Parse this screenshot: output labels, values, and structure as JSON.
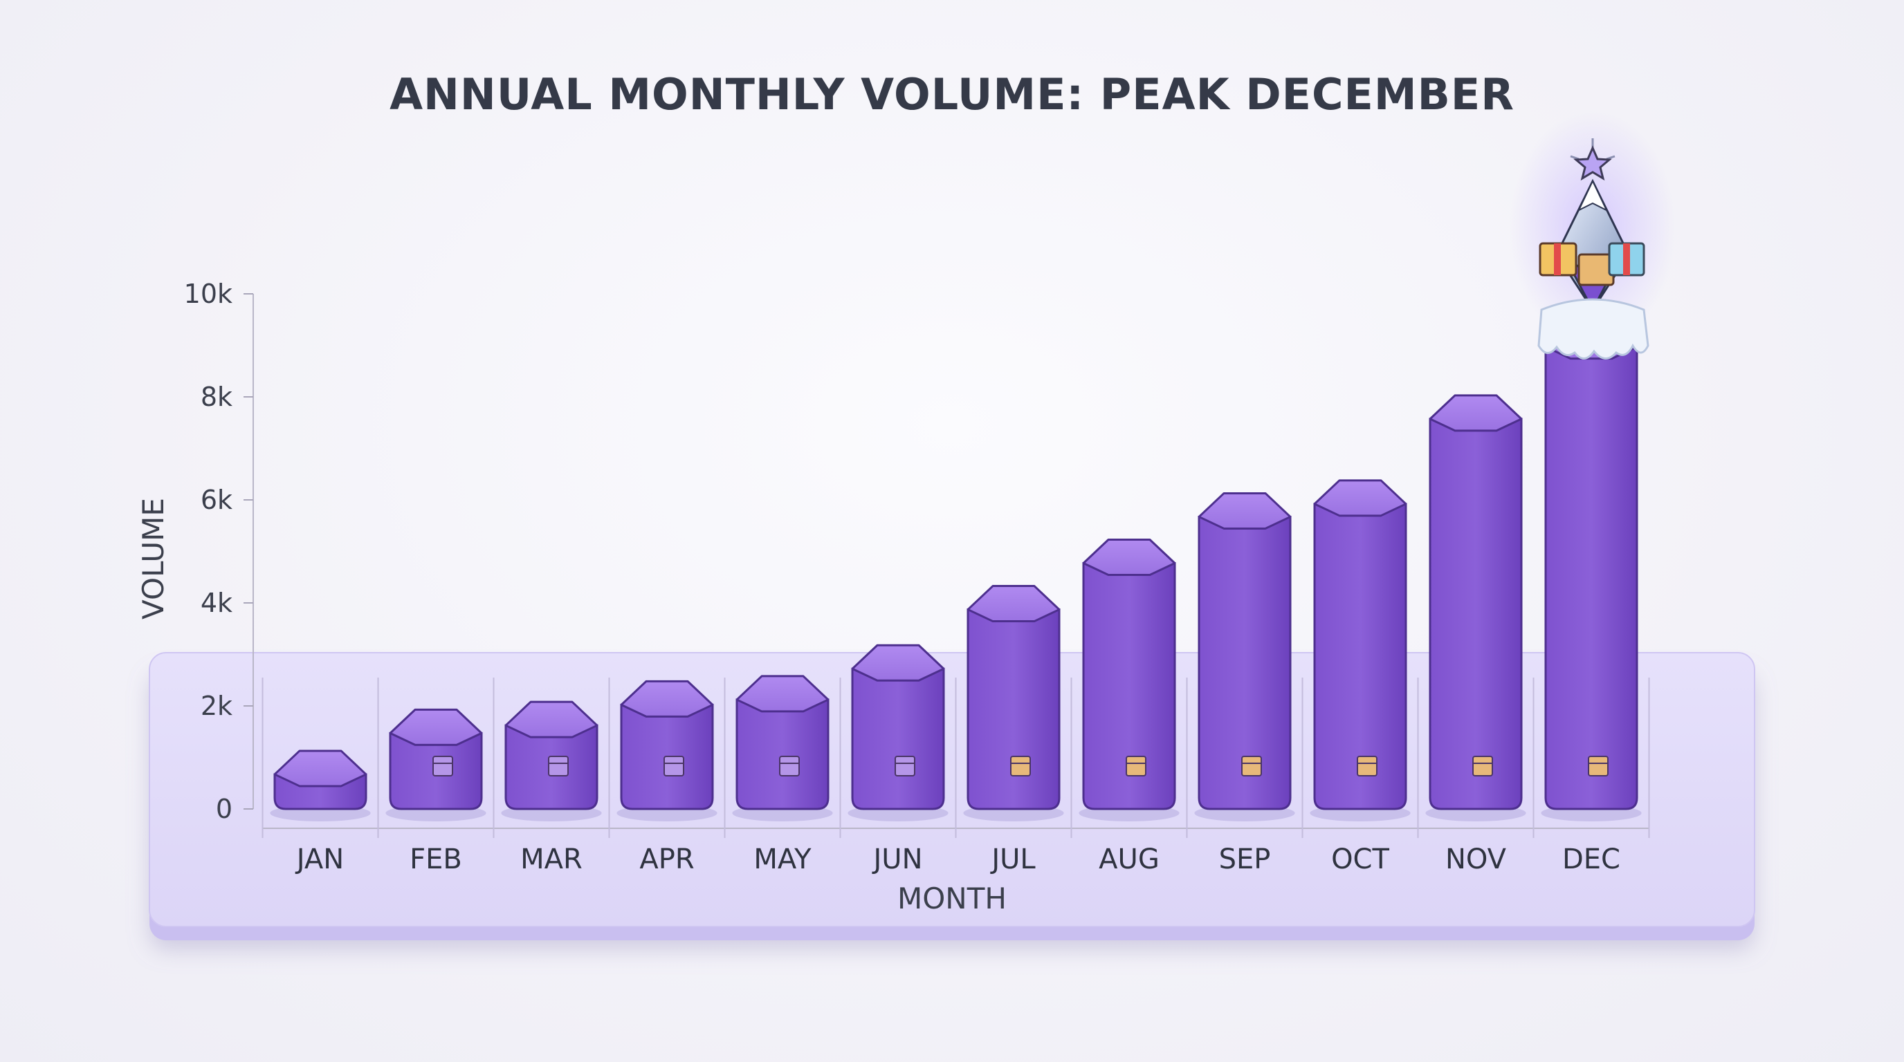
{
  "chart_data": {
    "type": "bar",
    "title": "ANNUAL MONTHLY VOLUME: PEAK DECEMBER",
    "xlabel": "MONTH",
    "ylabel": "VOLUME",
    "categories": [
      "JAN",
      "FEB",
      "MAR",
      "APR",
      "MAY",
      "JUN",
      "JUL",
      "AUG",
      "SEP",
      "OCT",
      "NOV",
      "DEC"
    ],
    "values": [
      900,
      1700,
      1850,
      2250,
      2350,
      2950,
      4100,
      5000,
      5900,
      6150,
      7800,
      9200
    ],
    "ylim": [
      0,
      10000
    ],
    "yticks": [
      0,
      2000,
      4000,
      6000,
      8000,
      10000
    ],
    "ytick_labels": [
      "0",
      "2k",
      "4k",
      "6k",
      "8k",
      "10k"
    ],
    "grid": false,
    "bar_color": "#8a5fd6",
    "bar_top_color": "#a47ce8",
    "peak_decoration_icons": [
      "star-icon",
      "snow-peak-icon",
      "gift-box-icon",
      "snow-cap-icon"
    ]
  }
}
